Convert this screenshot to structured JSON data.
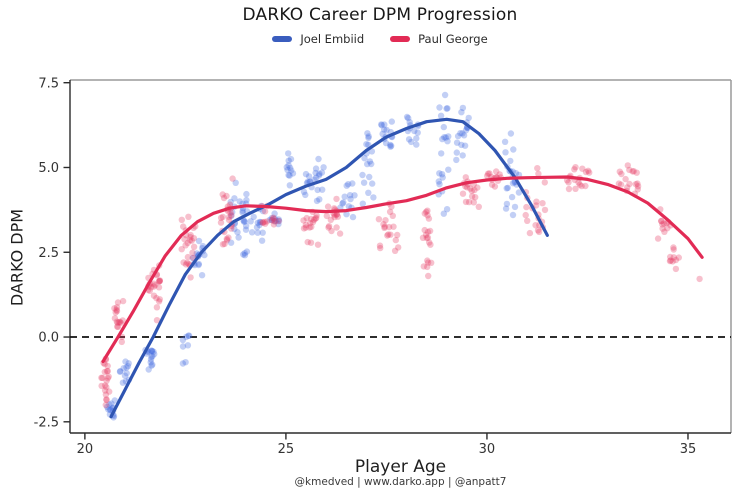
{
  "title": "DARKO Career DPM Progression",
  "legend": {
    "items": [
      {
        "label": "Joel Embiid",
        "color": "#3a5dbe"
      },
      {
        "label": "Paul George",
        "color": "#e22b55"
      }
    ]
  },
  "axes": {
    "x_label": "Player Age",
    "y_label": "DARKO DPM"
  },
  "footer": "@kmedved | www.darko.app | @anpatt7",
  "colors": {
    "embiid_line": "#2f55b2",
    "embiid_points": "#4169e1",
    "george_line": "#e22b55",
    "george_points": "#e63b63",
    "zero_line": "#111111",
    "dark_spine": "#2b2b2b",
    "light_spine": "#9a9a9a",
    "tick_text": "#333333"
  },
  "chart_data": {
    "type": "scatter",
    "title": "DARKO Career DPM Progression",
    "xlabel": "Player Age",
    "ylabel": "DARKO DPM",
    "xlim": [
      19.63,
      36.07
    ],
    "ylim": [
      -2.83,
      7.58
    ],
    "x_ticks": [
      20,
      25,
      30,
      35
    ],
    "y_ticks": [
      7.5,
      5.0,
      2.5,
      0.0,
      -2.5
    ],
    "grid": false,
    "legend_position": "top-center",
    "zero_line": {
      "y": 0.0,
      "style": "dashed",
      "color": "#111111"
    },
    "series": [
      {
        "name": "Joel Embiid",
        "line_color": "#2f55b2",
        "point_color": "#4169e1",
        "point_opacity": 0.32,
        "trend": [
          [
            20.65,
            -2.35
          ],
          [
            21.0,
            -1.55
          ],
          [
            21.35,
            -0.75
          ],
          [
            21.7,
            0.0
          ],
          [
            22.1,
            0.95
          ],
          [
            22.5,
            1.85
          ],
          [
            22.9,
            2.5
          ],
          [
            23.3,
            3.0
          ],
          [
            23.7,
            3.4
          ],
          [
            24.1,
            3.65
          ],
          [
            24.55,
            3.9
          ],
          [
            25.0,
            4.2
          ],
          [
            25.5,
            4.45
          ],
          [
            26.0,
            4.65
          ],
          [
            26.5,
            5.0
          ],
          [
            27.0,
            5.5
          ],
          [
            27.5,
            5.9
          ],
          [
            28.0,
            6.15
          ],
          [
            28.5,
            6.35
          ],
          [
            29.0,
            6.42
          ],
          [
            29.4,
            6.35
          ],
          [
            29.8,
            6.0
          ],
          [
            30.2,
            5.5
          ],
          [
            30.7,
            4.7
          ],
          [
            31.1,
            3.9
          ],
          [
            31.5,
            3.0
          ]
        ],
        "scatter_clusters": [
          [
            20.55,
            20.75,
            -2.45,
            -1.7,
            14
          ],
          [
            20.85,
            21.12,
            -1.45,
            -0.7,
            12
          ],
          [
            21.5,
            21.78,
            -1.05,
            -0.3,
            16
          ],
          [
            22.4,
            22.62,
            -0.9,
            0.9,
            8
          ],
          [
            22.62,
            23.0,
            1.6,
            2.95,
            16
          ],
          [
            23.6,
            24.05,
            2.2,
            4.7,
            30
          ],
          [
            24.1,
            24.45,
            2.8,
            4.1,
            14
          ],
          [
            24.55,
            24.95,
            3.1,
            3.75,
            10
          ],
          [
            25.02,
            25.18,
            4.35,
            5.5,
            12
          ],
          [
            25.45,
            25.95,
            3.6,
            5.5,
            22
          ],
          [
            26.35,
            26.72,
            3.4,
            4.7,
            14
          ],
          [
            26.9,
            27.2,
            3.3,
            6.1,
            18
          ],
          [
            27.35,
            27.65,
            5.4,
            6.85,
            16
          ],
          [
            27.95,
            28.3,
            5.6,
            6.6,
            14
          ],
          [
            28.8,
            29.05,
            3.2,
            7.25,
            22
          ],
          [
            29.2,
            29.55,
            5.1,
            7.1,
            18
          ],
          [
            30.45,
            30.8,
            3.2,
            6.2,
            24
          ]
        ]
      },
      {
        "name": "Paul George",
        "line_color": "#e22b55",
        "point_color": "#e63b63",
        "point_opacity": 0.32,
        "trend": [
          [
            20.45,
            -0.72
          ],
          [
            20.8,
            -0.05
          ],
          [
            21.2,
            0.75
          ],
          [
            21.6,
            1.6
          ],
          [
            22.0,
            2.4
          ],
          [
            22.4,
            3.0
          ],
          [
            22.8,
            3.4
          ],
          [
            23.2,
            3.65
          ],
          [
            23.6,
            3.8
          ],
          [
            24.0,
            3.87
          ],
          [
            24.5,
            3.85
          ],
          [
            25.0,
            3.8
          ],
          [
            25.5,
            3.73
          ],
          [
            26.0,
            3.7
          ],
          [
            26.5,
            3.73
          ],
          [
            27.0,
            3.82
          ],
          [
            27.5,
            3.93
          ],
          [
            28.0,
            4.02
          ],
          [
            28.5,
            4.18
          ],
          [
            29.0,
            4.4
          ],
          [
            29.5,
            4.55
          ],
          [
            30.0,
            4.63
          ],
          [
            30.5,
            4.68
          ],
          [
            31.0,
            4.7
          ],
          [
            31.5,
            4.71
          ],
          [
            32.0,
            4.72
          ],
          [
            32.5,
            4.65
          ],
          [
            33.0,
            4.5
          ],
          [
            33.5,
            4.28
          ],
          [
            34.0,
            3.95
          ],
          [
            34.5,
            3.45
          ],
          [
            35.0,
            2.9
          ],
          [
            35.35,
            2.35
          ]
        ],
        "scatter_clusters": [
          [
            20.4,
            20.62,
            -2.3,
            -0.4,
            22
          ],
          [
            20.72,
            20.97,
            -0.35,
            1.25,
            18
          ],
          [
            21.55,
            21.87,
            0.35,
            2.7,
            26
          ],
          [
            22.4,
            22.76,
            1.65,
            3.75,
            26
          ],
          [
            23.38,
            23.72,
            2.55,
            4.9,
            26
          ],
          [
            24.4,
            24.85,
            3.0,
            3.95,
            14
          ],
          [
            25.4,
            25.8,
            2.4,
            4.15,
            18
          ],
          [
            26.0,
            26.35,
            2.85,
            4.5,
            18
          ],
          [
            27.3,
            27.8,
            2.35,
            4.25,
            20
          ],
          [
            28.4,
            28.62,
            1.4,
            4.65,
            20
          ],
          [
            29.4,
            29.85,
            3.5,
            4.95,
            18
          ],
          [
            30.0,
            30.35,
            4.25,
            5.05,
            14
          ],
          [
            30.95,
            31.45,
            2.7,
            5.5,
            22
          ],
          [
            31.95,
            32.55,
            4.15,
            5.35,
            18
          ],
          [
            33.25,
            33.8,
            4.1,
            5.15,
            18
          ],
          [
            34.25,
            34.6,
            2.85,
            3.85,
            12
          ],
          [
            34.55,
            34.85,
            1.95,
            2.65,
            10
          ],
          [
            35.25,
            35.35,
            1.6,
            1.85,
            1
          ]
        ]
      }
    ]
  }
}
